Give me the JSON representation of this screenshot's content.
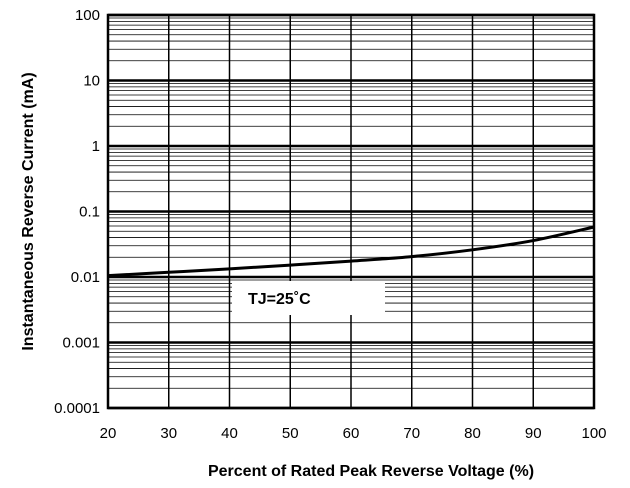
{
  "chart_data": {
    "type": "line",
    "title": "",
    "xlabel": "Percent of Rated Peak Reverse Voltage (%)",
    "ylabel": "Instantaneous Reverse Current (mA)",
    "x_ticks": [
      "20",
      "30",
      "40",
      "50",
      "60",
      "70",
      "80",
      "90",
      "100"
    ],
    "y_ticks": [
      "100",
      "10",
      "1",
      "0.1",
      "0.01",
      "0.001",
      "0.0001"
    ],
    "xlim": [
      20,
      100
    ],
    "ylim": [
      0.0001,
      100
    ],
    "y_scale": "log",
    "grid": true,
    "series": [
      {
        "x": [
          20,
          30,
          40,
          50,
          60,
          70,
          80,
          90,
          100
        ],
        "values": [
          0.0105,
          0.0118,
          0.0133,
          0.0152,
          0.0175,
          0.0205,
          0.026,
          0.036,
          0.058
        ]
      }
    ],
    "annotation": "TJ=25˚C",
    "line_color": "#000000",
    "grid_color": "#000000"
  }
}
